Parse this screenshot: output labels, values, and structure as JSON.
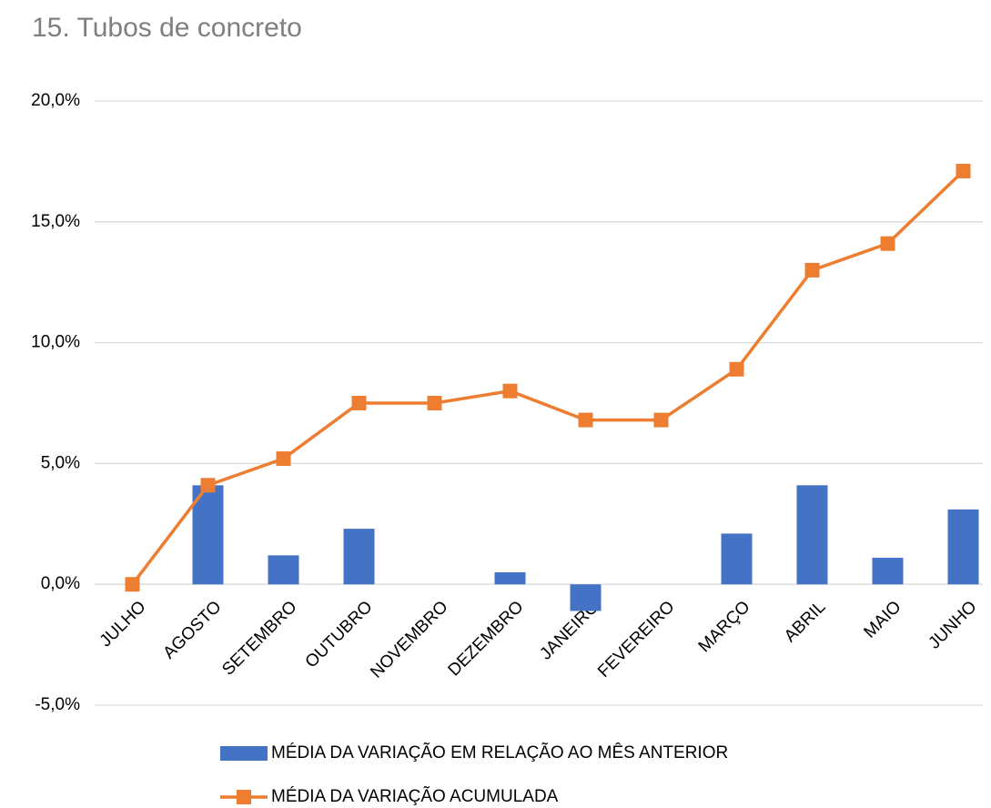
{
  "chart_data": {
    "type": "bar_line",
    "title": "15. Tubos de concreto",
    "categories": [
      "JULHO",
      "AGOSTO",
      "SETEMBRO",
      "OUTUBRO",
      "NOVEMBRO",
      "DEZEMBRO",
      "JANEIRO",
      "FEVEREIRO",
      "MARÇO",
      "ABRIL",
      "MAIO",
      "JUNHO"
    ],
    "series": [
      {
        "name": "MÉDIA DA VARIAÇÃO EM RELAÇÃO AO MÊS ANTERIOR",
        "type": "bar",
        "color": "#4472c4",
        "values": [
          0,
          4.1,
          1.2,
          2.3,
          0,
          0.5,
          -1.1,
          0,
          2.1,
          4.1,
          1.1,
          3.1
        ]
      },
      {
        "name": "MÉDIA DA VARIAÇÃO ACUMULADA",
        "type": "line",
        "color": "#ed7d31",
        "values": [
          0,
          4.1,
          5.2,
          7.5,
          7.5,
          8.0,
          6.8,
          6.8,
          8.9,
          13.0,
          14.1,
          17.1
        ]
      }
    ],
    "ylim": [
      -5,
      20
    ],
    "yticks": [
      {
        "value": -5,
        "label": "-5,0%"
      },
      {
        "value": 0,
        "label": "0,0%"
      },
      {
        "value": 5,
        "label": "5,0%"
      },
      {
        "value": 10,
        "label": "10,0%"
      },
      {
        "value": 15,
        "label": "15,0%"
      },
      {
        "value": 20,
        "label": "20,0%"
      }
    ],
    "grid": true,
    "legend": "bottom"
  }
}
